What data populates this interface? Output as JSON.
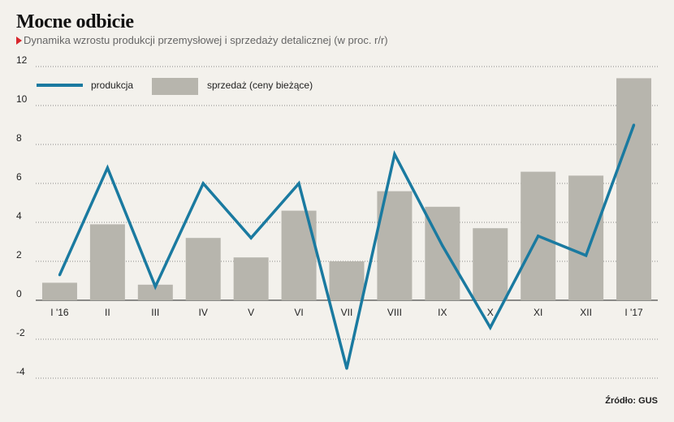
{
  "title": "Mocne odbicie",
  "subtitle": "Dynamika wzrostu produkcji przemysłowej i sprzedaży detalicznej (w proc. r/r)",
  "source": "Źródło: GUS",
  "colors": {
    "line": "#1a7aa0",
    "bar": "#b7b5ad",
    "grid": "#222222",
    "marker": "#d8262c",
    "background": "#f3f1ec"
  },
  "chart_data": {
    "type": "bar",
    "categories": [
      "I '16",
      "II",
      "III",
      "IV",
      "V",
      "VI",
      "VII",
      "VIII",
      "IX",
      "X",
      "XI",
      "XII",
      "I '17"
    ],
    "yticks": [
      "12",
      "10",
      "8",
      "6",
      "4",
      "2",
      "0",
      "-2",
      "-4"
    ],
    "ylim": [
      -4,
      12
    ],
    "grid": true,
    "legend_position": "top-left",
    "series": [
      {
        "name": "produkcja",
        "type": "line",
        "values": [
          1.3,
          6.8,
          0.7,
          6.0,
          3.2,
          6.0,
          -3.5,
          7.5,
          2.8,
          -1.4,
          3.3,
          2.3,
          9.0
        ]
      },
      {
        "name": "sprzedaż (ceny bieżące)",
        "type": "bar",
        "values": [
          0.9,
          3.9,
          0.8,
          3.2,
          2.2,
          4.6,
          2.0,
          5.6,
          4.8,
          3.7,
          6.6,
          6.4,
          11.4
        ]
      }
    ]
  }
}
